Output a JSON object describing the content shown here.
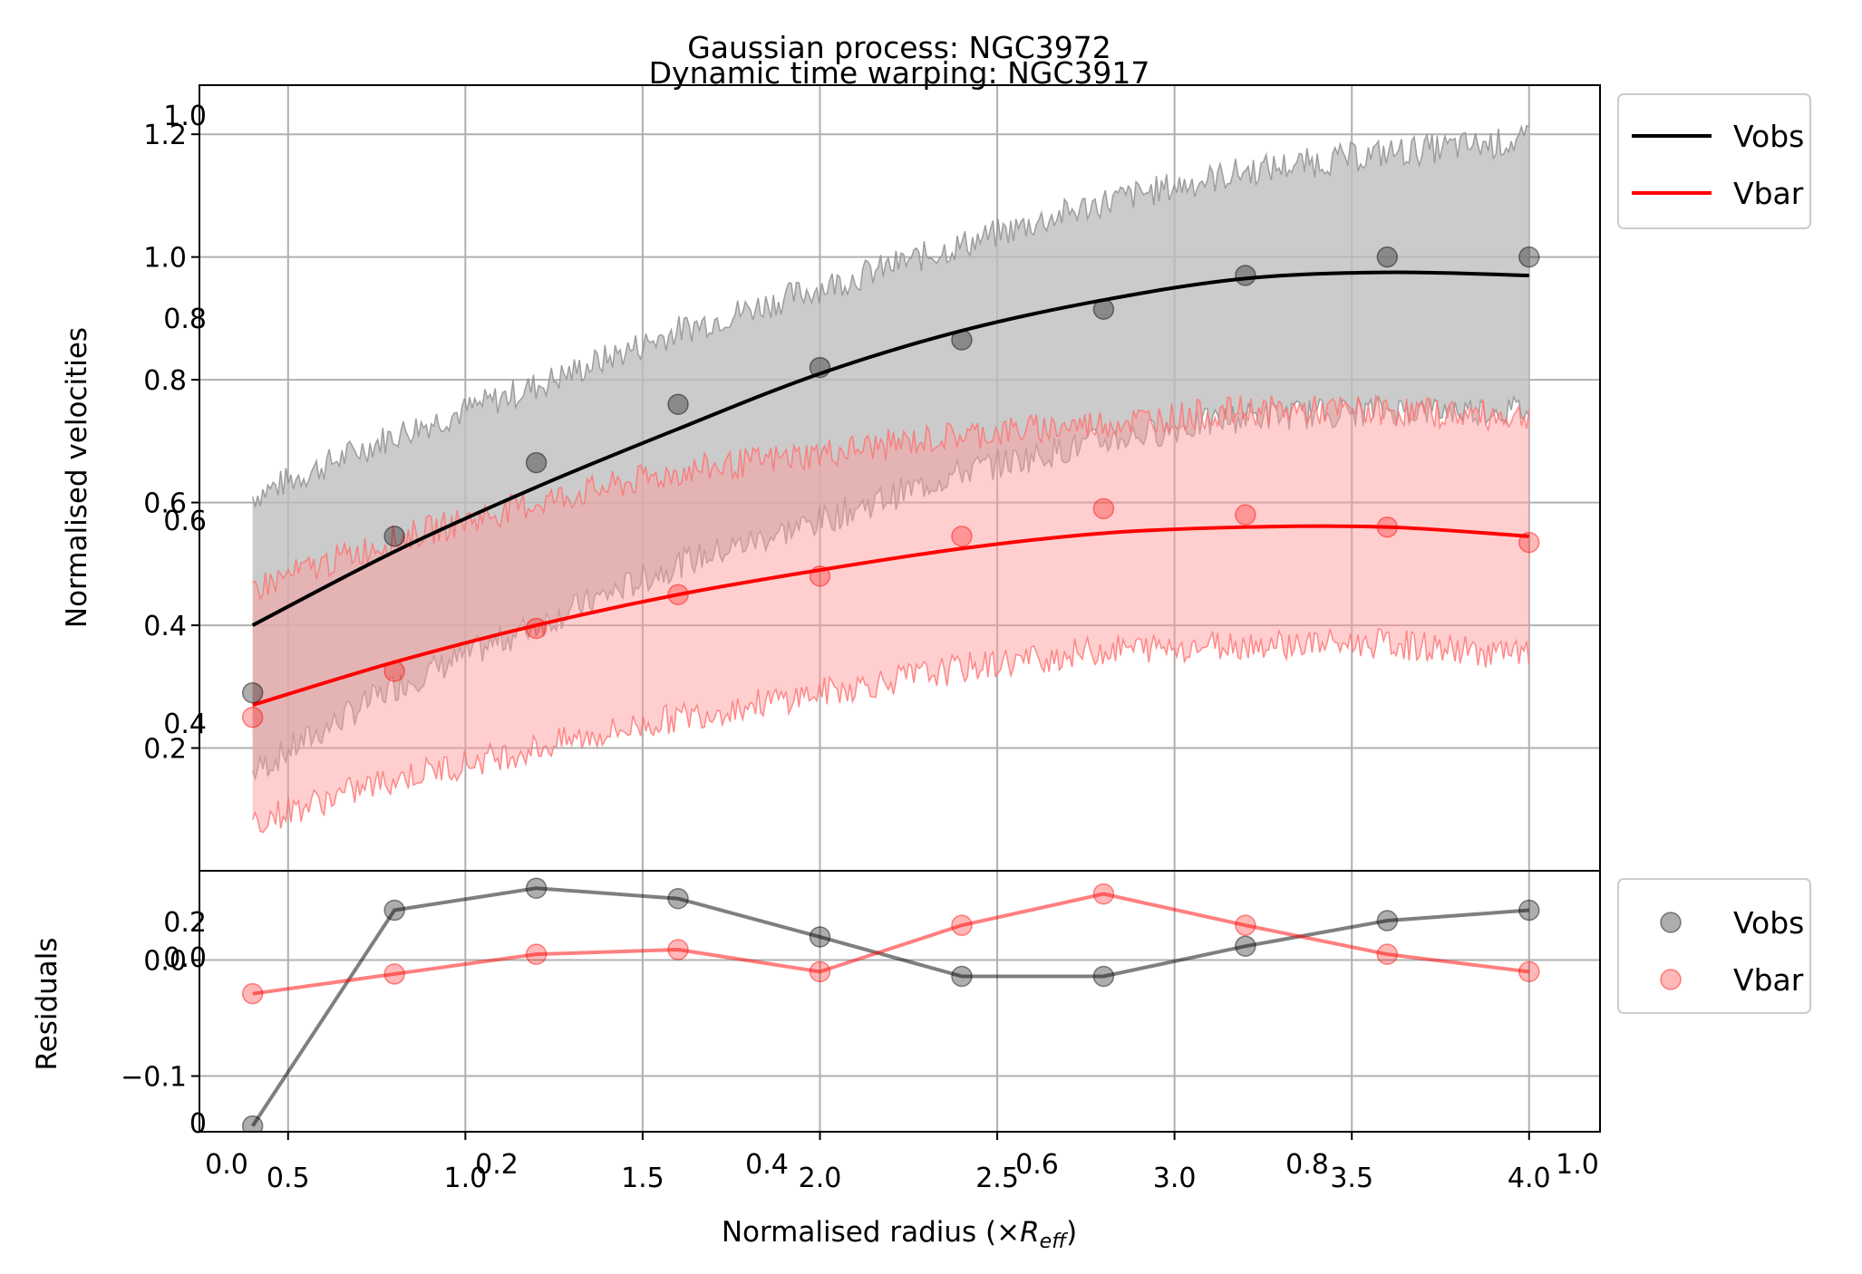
{
  "chart_data": {
    "type": "line",
    "titles": [
      "Gaussian process: NGC3972",
      "Dynamic time warping: NGC3917"
    ],
    "xlabel": "Normalised radius (×R_eff)",
    "main_panel": {
      "ylabel": "Normalised velocities",
      "xlim": [
        0.25,
        4.2
      ],
      "ylim": [
        0.0,
        1.28
      ],
      "xticks": [
        "0.5",
        "1.0",
        "1.5",
        "2.0",
        "2.5",
        "3.0",
        "3.5",
        "4.0"
      ],
      "yticks": [
        "0.2",
        "0.4",
        "0.6",
        "0.8",
        "1.0",
        "1.2"
      ],
      "ghost_xticks": [
        "0.0",
        "0.2",
        "0.4",
        "0.6",
        "0.8",
        "1.0"
      ],
      "ghost_yticks": [
        "0.4",
        "0.6",
        "0.8",
        "1.0"
      ],
      "grid": true,
      "legend": {
        "placement": "outside upper right",
        "entries": [
          "Vobs",
          "Vbar"
        ]
      },
      "points_x": [
        0.4,
        0.8,
        1.2,
        1.6,
        2.0,
        2.4,
        2.8,
        3.2,
        3.6,
        4.0
      ],
      "series": [
        {
          "name": "Vobs",
          "color": "#000000",
          "points": [
            0.29,
            0.545,
            0.665,
            0.76,
            0.82,
            0.865,
            0.915,
            0.97,
            1.0,
            1.0
          ],
          "fit_x": [
            0.4,
            0.8,
            1.2,
            1.6,
            2.0,
            2.4,
            2.8,
            3.2,
            3.6,
            4.0
          ],
          "fit_y": [
            0.4,
            0.52,
            0.625,
            0.72,
            0.81,
            0.88,
            0.93,
            0.965,
            0.975,
            0.97
          ],
          "band_upper": [
            0.61,
            0.71,
            0.79,
            0.88,
            0.95,
            1.02,
            1.09,
            1.14,
            1.17,
            1.19
          ],
          "band_lower": [
            0.16,
            0.3,
            0.4,
            0.5,
            0.57,
            0.65,
            0.7,
            0.74,
            0.75,
            0.75
          ]
        },
        {
          "name": "Vbar",
          "color": "#ff0000",
          "points": [
            0.25,
            0.325,
            0.395,
            0.45,
            0.48,
            0.545,
            0.59,
            0.58,
            0.56,
            0.535
          ],
          "fit_x": [
            0.4,
            0.8,
            1.2,
            1.6,
            2.0,
            2.4,
            2.8,
            3.2,
            3.6,
            4.0
          ],
          "fit_y": [
            0.27,
            0.34,
            0.4,
            0.45,
            0.49,
            0.525,
            0.55,
            0.56,
            0.56,
            0.545
          ],
          "band_upper": [
            0.46,
            0.54,
            0.6,
            0.65,
            0.68,
            0.71,
            0.73,
            0.75,
            0.75,
            0.74
          ],
          "band_lower": [
            0.08,
            0.15,
            0.2,
            0.25,
            0.29,
            0.33,
            0.36,
            0.37,
            0.37,
            0.35
          ]
        }
      ]
    },
    "residual_panel": {
      "ylabel": "Residuals",
      "ylim": [
        -0.148,
        0.077
      ],
      "yticks": [
        "−0.1",
        "0.0"
      ],
      "ghost_yticks": [
        "0.2",
        "0.0"
      ],
      "grid": true,
      "legend": {
        "placement": "outside upper right",
        "entries": [
          "Vobs",
          "Vbar"
        ]
      },
      "series": [
        {
          "name": "Vobs",
          "color": "#000000",
          "x": [
            0.4,
            0.8,
            1.2,
            1.6,
            2.0,
            2.4,
            2.8,
            3.2,
            3.6,
            4.0
          ],
          "y": [
            -0.143,
            0.043,
            0.062,
            0.053,
            0.02,
            -0.014,
            -0.014,
            0.012,
            0.034,
            0.043
          ]
        },
        {
          "name": "Vbar",
          "color": "#ff0000",
          "x": [
            0.4,
            0.8,
            1.2,
            1.6,
            2.0,
            2.4,
            2.8,
            3.2,
            3.6,
            4.0
          ],
          "y": [
            -0.029,
            -0.012,
            0.005,
            0.009,
            -0.01,
            0.03,
            0.057,
            0.03,
            0.005,
            -0.01
          ]
        }
      ]
    }
  }
}
